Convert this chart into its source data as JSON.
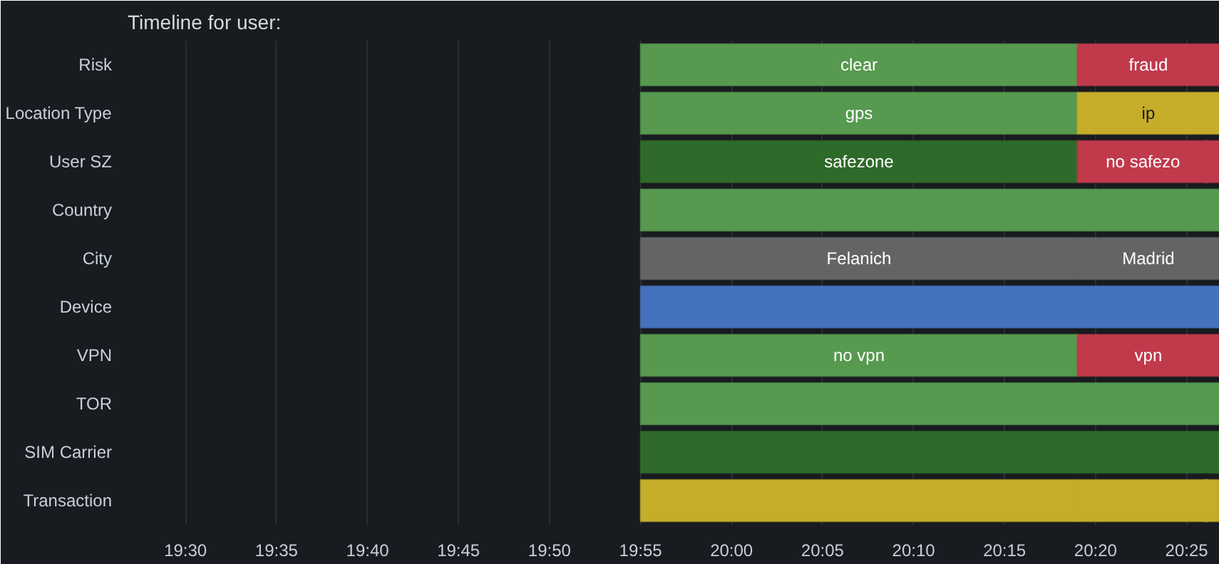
{
  "chart_data": {
    "type": "bar",
    "orientation": "horizontal",
    "title": "Timeline for user:",
    "categories": [
      "Risk",
      "Location Type",
      "User SZ",
      "Country",
      "City",
      "Device",
      "VPN",
      "TOR",
      "SIM Carrier",
      "Transaction"
    ],
    "xlim": [
      19.447,
      20.447
    ],
    "xticks": [
      {
        "value": 19.5,
        "label": "19:30"
      },
      {
        "value": 19.5833,
        "label": "19:35"
      },
      {
        "value": 19.6667,
        "label": "19:40"
      },
      {
        "value": 19.75,
        "label": "19:45"
      },
      {
        "value": 19.8333,
        "label": "19:50"
      },
      {
        "value": 19.9167,
        "label": "19:55"
      },
      {
        "value": 20.0,
        "label": "20:00"
      },
      {
        "value": 20.0833,
        "label": "20:05"
      },
      {
        "value": 20.1667,
        "label": "20:10"
      },
      {
        "value": 20.25,
        "label": "20:15"
      },
      {
        "value": 20.3333,
        "label": "20:20"
      },
      {
        "value": 20.4167,
        "label": "20:25"
      }
    ],
    "grid": "x",
    "series": [
      {
        "base": [
          19.9167,
          19.9167,
          19.9167,
          19.9167,
          19.9167,
          19.9167,
          19.9167,
          19.9167,
          19.9167,
          19.9167
        ],
        "values": [
          0.4,
          0.4,
          0.4,
          0.53,
          0.4,
          0.4,
          0.4,
          0.53,
          0.4,
          0.4
        ],
        "colors": [
          "#56994f",
          "#56994f",
          "#2e6a2a",
          "#56994f",
          "#646464",
          "#4572bd",
          "#56994f",
          "#56994f",
          "#2e6a2a",
          "#c5ad2a"
        ],
        "value_labels": [
          "clear",
          "gps",
          "safezone",
          null,
          "Felanich",
          null,
          "no vpn",
          null,
          null,
          null
        ]
      },
      {
        "base": [
          20.3167,
          20.3167,
          20.3167,
          null,
          20.3167,
          20.3167,
          20.3167,
          null,
          20.3167,
          20.3167
        ],
        "values": [
          0.13,
          0.13,
          0.12,
          null,
          0.13,
          0.13,
          0.13,
          null,
          0.13,
          0.12
        ],
        "colors": [
          "#c03a4c",
          "#c5ad2a",
          "#c03a4c",
          null,
          "#646464",
          "#4572bd",
          "#c03a4c",
          null,
          "#2e6a2a",
          "#c5ad2a"
        ],
        "value_labels": [
          "fraud",
          "ip",
          "no safezo",
          null,
          "Madrid",
          null,
          "vpn",
          null,
          null,
          null
        ]
      },
      {
        "base": [
          null,
          null,
          20.4333,
          null,
          null,
          null,
          null,
          null,
          null,
          20.4333
        ],
        "values": [
          null,
          null,
          0.013,
          null,
          null,
          null,
          null,
          null,
          null,
          0.013
        ],
        "colors": [
          null,
          null,
          "#c03a4c",
          null,
          null,
          null,
          null,
          null,
          null,
          "#c5ad2a"
        ],
        "value_labels": [
          null,
          null,
          null,
          null,
          null,
          null,
          null,
          null,
          null,
          null
        ]
      }
    ]
  }
}
